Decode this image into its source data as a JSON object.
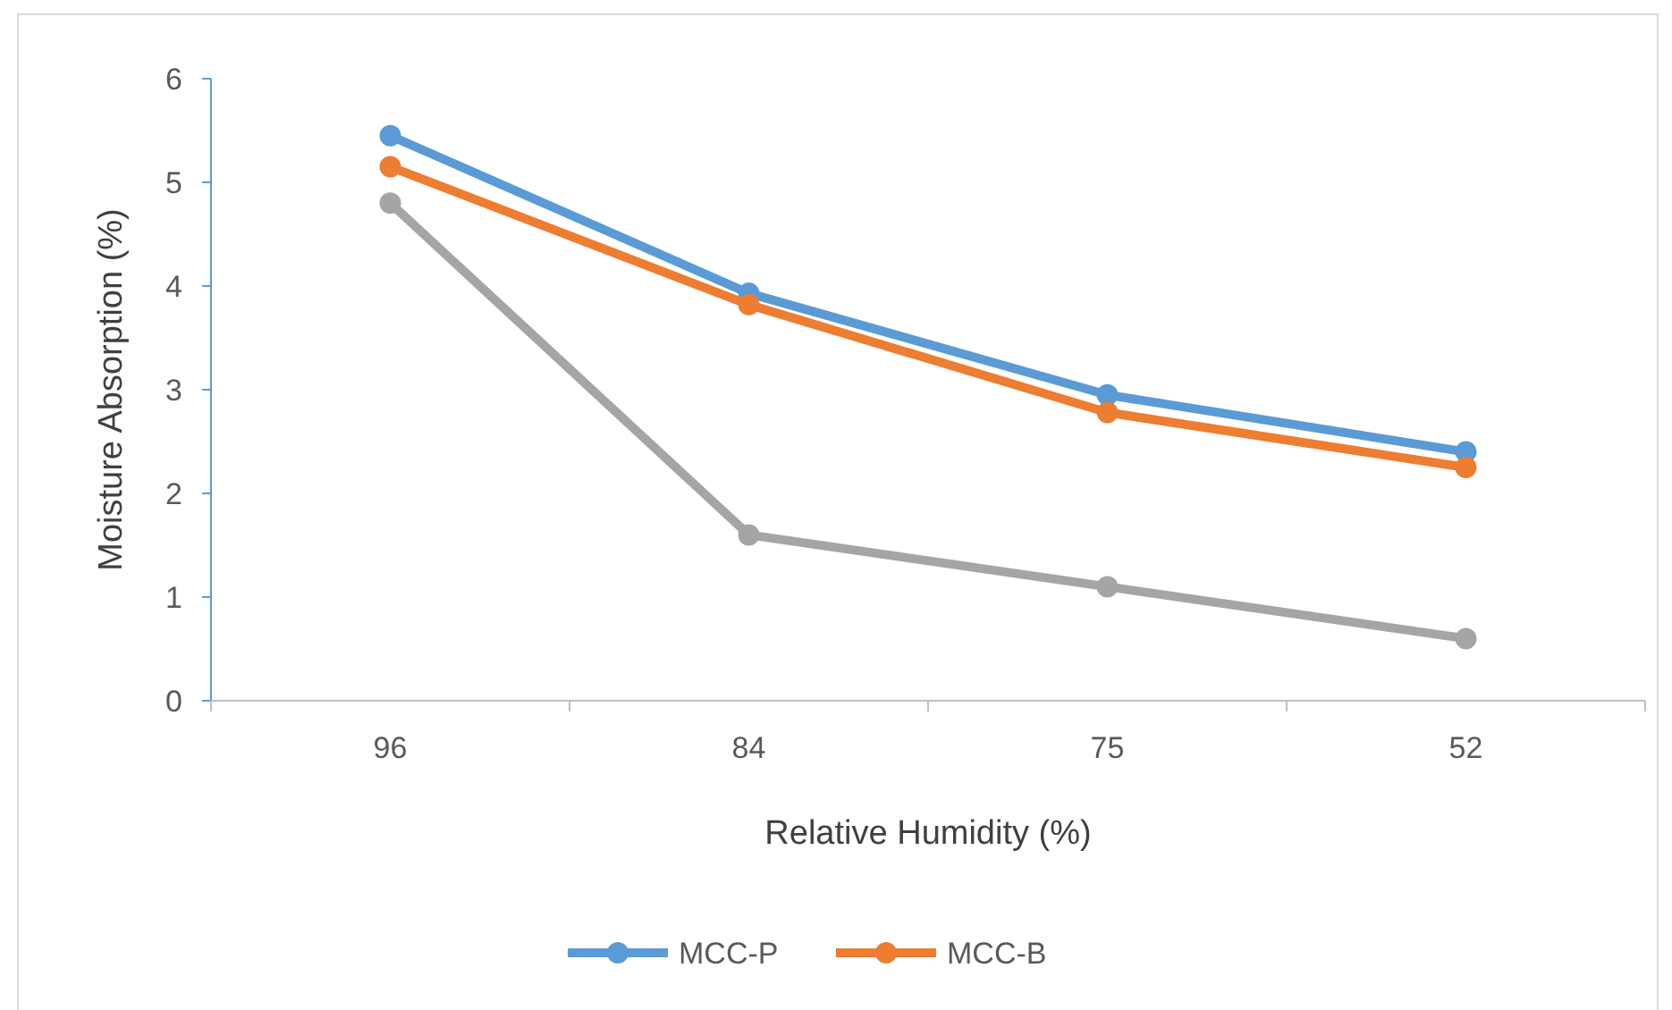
{
  "chart_data": {
    "type": "line",
    "xlabel": "Relative Humidity (%)",
    "ylabel": "Moisture Absorption (%)",
    "categories": [
      "96",
      "84",
      "75",
      "52"
    ],
    "series": [
      {
        "name": "MCC-P",
        "color": "#5b9bd5",
        "values": [
          5.45,
          3.93,
          2.95,
          2.4
        ]
      },
      {
        "name": "MCC-B",
        "color": "#ed7d31",
        "values": [
          5.15,
          3.82,
          2.78,
          2.25
        ]
      },
      {
        "color": "#a5a5a5",
        "values": [
          4.8,
          1.6,
          1.1,
          0.6
        ]
      }
    ],
    "ylim": [
      0,
      6
    ],
    "yticks": [
      0,
      1,
      2,
      3,
      4,
      5,
      6
    ],
    "grid": false,
    "legend": "bottom",
    "marker": "circle",
    "line_style": "solid"
  }
}
